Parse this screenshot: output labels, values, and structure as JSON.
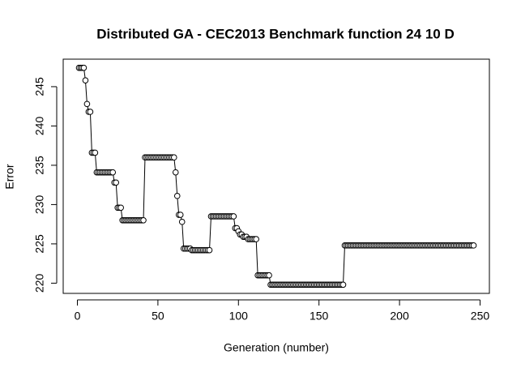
{
  "chart_data": {
    "type": "line",
    "title": "Distributed GA - CEC2013 Benchmark function  24 10 D",
    "x_label": "Generation (number)",
    "y_label": "Error",
    "color": "#000000",
    "x": [
      1,
      2,
      3,
      4,
      5,
      6,
      7,
      8,
      9,
      10,
      11,
      12,
      13,
      14,
      15,
      16,
      17,
      18,
      19,
      20,
      21,
      22,
      23,
      24,
      25,
      26,
      27,
      28,
      29,
      30,
      31,
      32,
      33,
      34,
      35,
      36,
      37,
      38,
      39,
      40,
      41,
      42,
      43,
      44,
      45,
      46,
      47,
      48,
      49,
      50,
      51,
      52,
      53,
      54,
      55,
      56,
      57,
      58,
      59,
      60,
      61,
      62,
      63,
      64,
      65,
      66,
      67,
      68,
      69,
      70,
      71,
      72,
      73,
      74,
      75,
      76,
      77,
      78,
      79,
      80,
      81,
      82,
      83,
      84,
      85,
      86,
      87,
      88,
      89,
      90,
      91,
      92,
      93,
      94,
      95,
      96,
      97,
      98,
      99,
      100,
      101,
      102,
      103,
      104,
      105,
      106,
      107,
      108,
      109,
      110,
      111,
      112,
      113,
      114,
      115,
      116,
      117,
      118,
      119,
      120,
      121,
      122,
      123,
      124,
      125,
      126,
      127,
      128,
      129,
      130,
      131,
      132,
      133,
      134,
      135,
      136,
      137,
      138,
      139,
      140,
      141,
      142,
      143,
      144,
      145,
      146,
      147,
      148,
      149,
      150,
      151,
      152,
      153,
      154,
      155,
      156,
      157,
      158,
      159,
      160,
      161,
      162,
      163,
      164,
      165,
      166,
      167,
      168,
      169,
      170,
      171,
      172,
      173,
      174,
      175,
      176,
      177,
      178,
      179,
      180,
      181,
      182,
      183,
      184,
      185,
      186,
      187,
      188,
      189,
      190,
      191,
      192,
      193,
      194,
      195,
      196,
      197,
      198,
      199,
      200,
      201,
      202,
      203,
      204,
      205,
      206,
      207,
      208,
      209,
      210,
      211,
      212,
      213,
      214,
      215,
      216,
      217,
      218,
      219,
      220,
      221,
      222,
      223,
      224,
      225,
      226,
      227,
      228,
      229,
      230,
      231,
      232,
      233,
      234,
      235,
      236,
      237,
      238,
      239,
      240,
      241,
      242,
      243,
      244,
      245,
      246
    ],
    "values": [
      247.4,
      247.4,
      247.4,
      247.4,
      245.8,
      242.8,
      241.8,
      241.8,
      236.6,
      236.6,
      236.6,
      234.1,
      234.1,
      234.1,
      234.1,
      234.1,
      234.1,
      234.1,
      234.1,
      234.1,
      234.1,
      234.1,
      232.8,
      232.8,
      229.6,
      229.6,
      229.6,
      228.0,
      228.0,
      228.0,
      228.0,
      228.0,
      228.0,
      228.0,
      228.0,
      228.0,
      228.0,
      228.0,
      228.0,
      228.0,
      228.0,
      236.0,
      236.0,
      236.0,
      236.0,
      236.0,
      236.0,
      236.0,
      236.0,
      236.0,
      236.0,
      236.0,
      236.0,
      236.0,
      236.0,
      236.0,
      236.0,
      236.0,
      236.0,
      236.0,
      234.1,
      231.1,
      228.7,
      228.7,
      227.8,
      224.4,
      224.4,
      224.4,
      224.4,
      224.4,
      224.2,
      224.2,
      224.2,
      224.2,
      224.2,
      224.2,
      224.2,
      224.2,
      224.2,
      224.2,
      224.2,
      224.2,
      228.5,
      228.5,
      228.5,
      228.5,
      228.5,
      228.5,
      228.5,
      228.5,
      228.5,
      228.5,
      228.5,
      228.5,
      228.5,
      228.5,
      228.5,
      227.0,
      227.0,
      226.6,
      226.2,
      226.2,
      225.9,
      225.9,
      225.9,
      225.6,
      225.6,
      225.6,
      225.6,
      225.6,
      225.6,
      221.0,
      221.0,
      221.0,
      221.0,
      221.0,
      221.0,
      221.0,
      221.0,
      219.8,
      219.8,
      219.8,
      219.8,
      219.8,
      219.8,
      219.8,
      219.8,
      219.8,
      219.8,
      219.8,
      219.8,
      219.8,
      219.8,
      219.8,
      219.8,
      219.8,
      219.8,
      219.8,
      219.8,
      219.8,
      219.8,
      219.8,
      219.8,
      219.8,
      219.8,
      219.8,
      219.8,
      219.8,
      219.8,
      219.8,
      219.8,
      219.8,
      219.8,
      219.8,
      219.8,
      219.8,
      219.8,
      219.8,
      219.8,
      219.8,
      219.8,
      219.8,
      219.8,
      219.8,
      219.8,
      224.8,
      224.8,
      224.8,
      224.8,
      224.8,
      224.8,
      224.8,
      224.8,
      224.8,
      224.8,
      224.8,
      224.8,
      224.8,
      224.8,
      224.8,
      224.8,
      224.8,
      224.8,
      224.8,
      224.8,
      224.8,
      224.8,
      224.8,
      224.8,
      224.8,
      224.8,
      224.8,
      224.8,
      224.8,
      224.8,
      224.8,
      224.8,
      224.8,
      224.8,
      224.8,
      224.8,
      224.8,
      224.8,
      224.8,
      224.8,
      224.8,
      224.8,
      224.8,
      224.8,
      224.8,
      224.8,
      224.8,
      224.8,
      224.8,
      224.8,
      224.8,
      224.8,
      224.8,
      224.8,
      224.8,
      224.8,
      224.8,
      224.8,
      224.8,
      224.8,
      224.8,
      224.8,
      224.8,
      224.8,
      224.8,
      224.8,
      224.8,
      224.8,
      224.8,
      224.8,
      224.8,
      224.8,
      224.8,
      224.8,
      224.8,
      224.8,
      224.8,
      224.8,
      224.8,
      224.8,
      224.8
    ],
    "xlim": [
      -8.8,
      255.8
    ],
    "ylim": [
      218.7,
      248.5
    ],
    "xticks": [
      0,
      50,
      100,
      150,
      200,
      250
    ],
    "yticks": [
      220,
      225,
      230,
      235,
      240,
      245
    ]
  }
}
